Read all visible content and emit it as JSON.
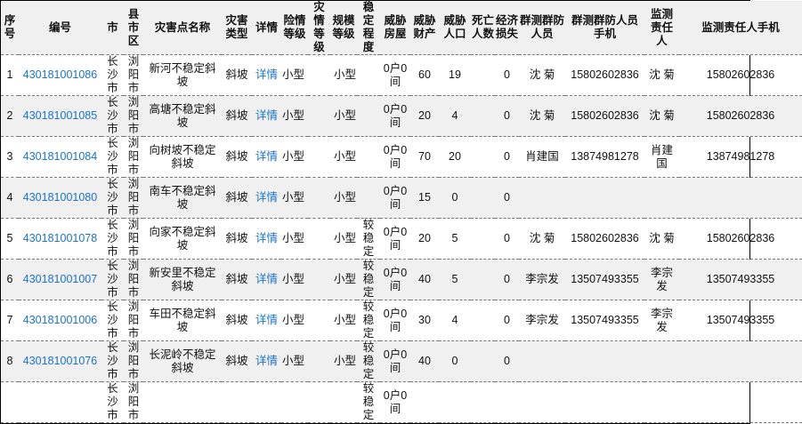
{
  "headers": [
    "序号",
    "编号",
    "市",
    "县市区",
    "灾害点名称",
    "灾害类型",
    "详情",
    "险情等级",
    "灾情等级",
    "规模等级",
    "稳定程度",
    "威胁房屋",
    "威胁财产",
    "威胁人口",
    "死亡人数",
    "经济损失",
    "群测群防人员",
    "群测群防人员手机",
    "监测责任人",
    "监测责任人手机"
  ],
  "link_color": "#1a73c8",
  "rows": [
    [
      "1",
      "430181001086",
      "长沙市",
      "浏阳市",
      "新河不稳定斜坡",
      "斜坡",
      "详情",
      "小型",
      "",
      "小型",
      "",
      "0户0间",
      "60",
      "19",
      "",
      "0",
      "沈 菊",
      "15802602836",
      "沈 菊",
      "15802602836"
    ],
    [
      "2",
      "430181001085",
      "长沙市",
      "浏阳市",
      "高塘不稳定斜坡",
      "斜坡",
      "详情",
      "小型",
      "",
      "小型",
      "",
      "0户0间",
      "20",
      "4",
      "",
      "0",
      "沈 菊",
      "15802602836",
      "沈 菊",
      "15802602836"
    ],
    [
      "3",
      "430181001084",
      "长沙市",
      "浏阳市",
      "向树坡不稳定斜坡",
      "斜坡",
      "详情",
      "小型",
      "",
      "小型",
      "",
      "0户0间",
      "70",
      "20",
      "",
      "0",
      "肖建国",
      "13874981278",
      "肖建国",
      "13874981278"
    ],
    [
      "4",
      "430181001080",
      "长沙市",
      "浏阳市",
      "南车不稳定斜坡",
      "斜坡",
      "详情",
      "小型",
      "",
      "小型",
      "",
      "0户0间",
      "15",
      "0",
      "",
      "0",
      "",
      "",
      "",
      ""
    ],
    [
      "5",
      "430181001078",
      "长沙市",
      "浏阳市",
      "向家不稳定斜坡",
      "斜坡",
      "详情",
      "小型",
      "",
      "小型",
      "较稳定",
      "0户0间",
      "20",
      "5",
      "",
      "0",
      "沈 菊",
      "15802602836",
      "沈 菊",
      "15802602836"
    ],
    [
      "6",
      "430181001007",
      "长沙市",
      "浏阳市",
      "新安里不稳定斜坡",
      "斜坡",
      "详情",
      "小型",
      "",
      "小型",
      "较稳定",
      "0户0间",
      "40",
      "5",
      "",
      "0",
      "李宗发",
      "13507493355",
      "李宗发",
      "13507493355"
    ],
    [
      "7",
      "430181001006",
      "长沙市",
      "浏阳市",
      "车田不稳定斜坡",
      "斜坡",
      "详情",
      "小型",
      "",
      "小型",
      "较稳定",
      "0户0间",
      "30",
      "4",
      "",
      "0",
      "李宗发",
      "13507493355",
      "李宗发",
      "13507493355"
    ],
    [
      "8",
      "430181001076",
      "长沙市",
      "浏阳市",
      "长泥岭不稳定斜坡",
      "斜坡",
      "详情",
      "小型",
      "",
      "小型",
      "较稳定",
      "0户0间",
      "40",
      "0",
      "",
      "0",
      "",
      "",
      "",
      ""
    ],
    [
      "",
      "",
      "长沙市",
      "浏阳市",
      "",
      "",
      "",
      "",
      "",
      "",
      "较稳定",
      "0户0间",
      "",
      "",
      "",
      "",
      "",
      "",
      "",
      ""
    ]
  ]
}
